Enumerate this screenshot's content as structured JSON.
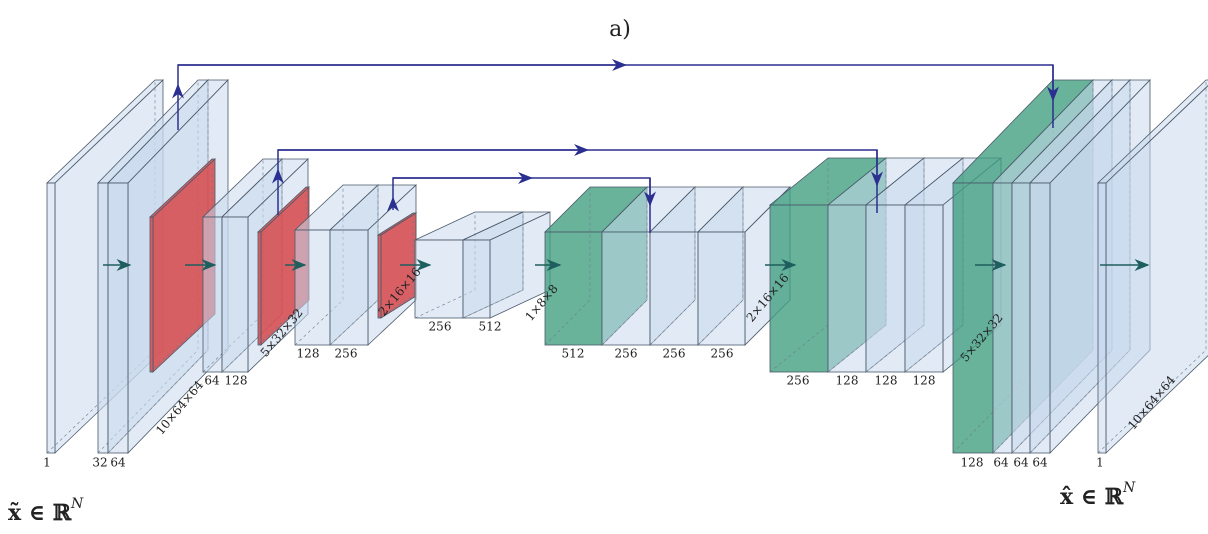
{
  "title": "a)",
  "labels": [
    "1",
    "32",
    "64",
    "10×64×64",
    "64",
    "128",
    "5×32×32",
    "128",
    "256",
    "2×16×16",
    "256",
    "512",
    "1×8×8",
    "512",
    "256",
    "256",
    "256",
    "2×16×16",
    "256",
    "128",
    "128",
    "128",
    "5×32×32",
    "128",
    "64",
    "64",
    "64",
    "1",
    "10×64×64"
  ],
  "input_label": {
    "text": "x̃ ∈ ℝ",
    "superscript": "N"
  },
  "output_label": {
    "text": "x̂ ∈ ℝ",
    "superscript": "N"
  }
}
